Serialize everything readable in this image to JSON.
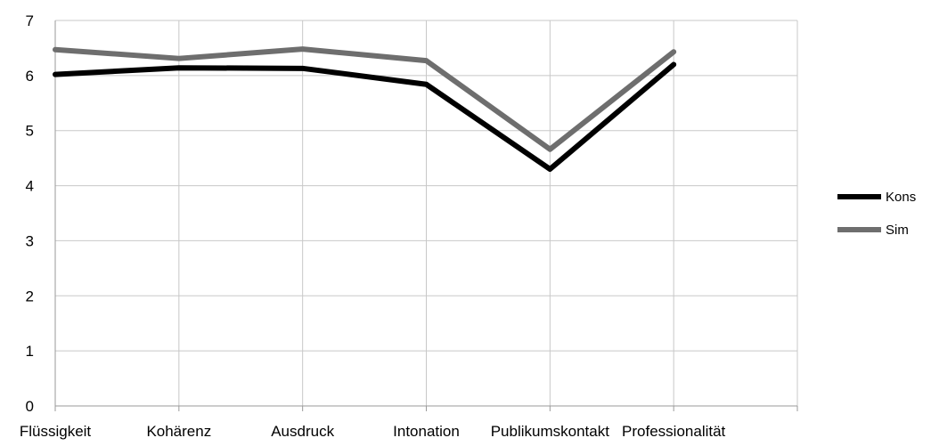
{
  "chart_data": {
    "type": "line",
    "categories": [
      "Flüssigkeit",
      "Kohärenz",
      "Ausdruck",
      "Intonation",
      "Publikumskontakt",
      "Professionalität"
    ],
    "series": [
      {
        "name": "Kons",
        "values": [
          6.02,
          6.14,
          6.13,
          5.84,
          4.3,
          6.2
        ],
        "color": "#000000"
      },
      {
        "name": "Sim",
        "values": [
          6.47,
          6.31,
          6.48,
          6.27,
          4.66,
          6.43
        ],
        "color": "#6e6e6e"
      }
    ],
    "y_ticks": [
      "0",
      "1",
      "2",
      "3",
      "4",
      "5",
      "6",
      "7"
    ],
    "ylim": [
      0,
      7
    ],
    "grid": true,
    "legend_position": "right",
    "title": "",
    "xlabel": "",
    "ylabel": ""
  }
}
